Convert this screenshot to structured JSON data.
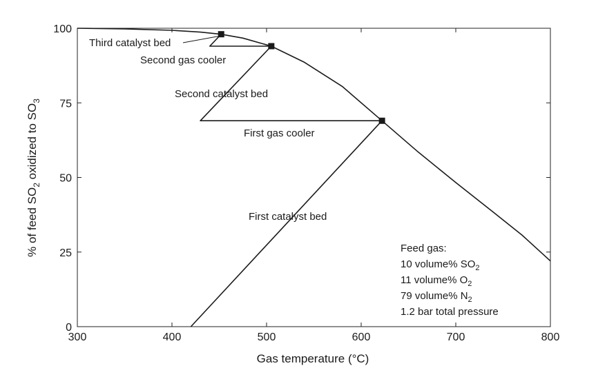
{
  "chart_data": {
    "type": "line",
    "xlabel": "Gas temperature (°C)",
    "ylabel_parts": [
      "% of feed SO",
      "2",
      " oxidized to SO",
      "3"
    ],
    "xlim": [
      300,
      800
    ],
    "ylim": [
      0,
      100
    ],
    "x_ticks": [
      "300",
      "400",
      "500",
      "600",
      "700",
      "800"
    ],
    "y_ticks": [
      "0",
      "25",
      "50",
      "75",
      "100"
    ],
    "grid": false,
    "series": [
      {
        "role": "equilibrium-curve",
        "points": [
          [
            300,
            100
          ],
          [
            350,
            99.8
          ],
          [
            400,
            99.3
          ],
          [
            430,
            98.7
          ],
          [
            452,
            98.0
          ],
          [
            475,
            96.7
          ],
          [
            505,
            94.0
          ],
          [
            540,
            88.6
          ],
          [
            580,
            80.5
          ],
          [
            622,
            69.0
          ],
          [
            660,
            58.6
          ],
          [
            700,
            48.3
          ],
          [
            740,
            38.3
          ],
          [
            770,
            30.7
          ],
          [
            800,
            22.0
          ]
        ]
      },
      {
        "role": "operating-path",
        "points": [
          [
            420,
            0
          ],
          [
            622,
            69.0
          ],
          [
            430,
            69.0
          ],
          [
            505,
            94.0
          ],
          [
            440,
            94.0
          ],
          [
            452,
            98.0
          ]
        ]
      }
    ],
    "markers": [
      [
        452,
        98.0
      ],
      [
        505,
        94.0
      ],
      [
        622,
        69.0
      ]
    ],
    "annotations": {
      "third_catalyst_bed": "Third catalyst bed",
      "second_gas_cooler": "Second gas cooler",
      "second_catalyst_bed": "Second catalyst bed",
      "first_gas_cooler": "First gas cooler",
      "first_catalyst_bed": "First catalyst bed"
    },
    "feed_gas": {
      "title": "Feed gas:",
      "so2": [
        "10 volume% SO",
        "2"
      ],
      "o2": [
        "11 volume% O",
        "2"
      ],
      "n2": [
        "79 volume% N",
        "2"
      ],
      "pressure": "1.2 bar total pressure"
    }
  }
}
